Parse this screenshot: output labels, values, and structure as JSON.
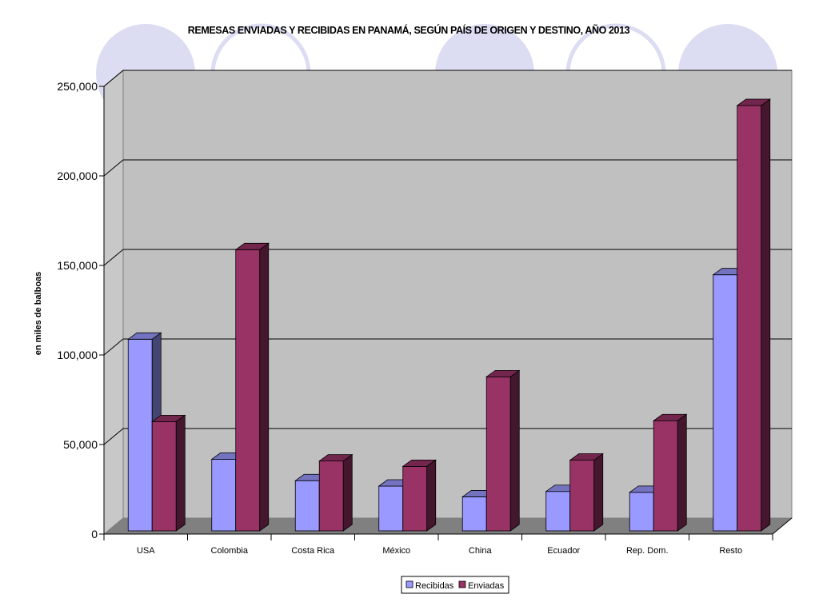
{
  "chart_data": {
    "type": "bar",
    "title": "REMESAS ENVIADAS Y RECIBIDAS EN PANAMÁ, SEGÚN PAÍS DE ORIGEN Y DESTINO, AÑO 2013",
    "xlabel": "",
    "ylabel": "en miles de balboas",
    "ylim": [
      0,
      250000
    ],
    "yticks": [
      "0",
      "50,000",
      "100,000",
      "150,000",
      "200,000",
      "250,000"
    ],
    "grid": true,
    "legend_position": "bottom",
    "categories": [
      "USA",
      "Colombia",
      "Costa Rica",
      "México",
      "China",
      "Ecuador",
      "Rep. Dom.",
      "Resto"
    ],
    "series": [
      {
        "name": "Recibidas",
        "values": [
          107000,
          40000,
          28000,
          25000,
          19000,
          22000,
          21500,
          143000
        ],
        "color": "#9999ff"
      },
      {
        "name": "Enviadas",
        "values": [
          61000,
          157000,
          39000,
          36000,
          86000,
          39500,
          61500,
          237500
        ],
        "color": "#993366"
      }
    ]
  },
  "colors": {
    "plot_wall": "#c0c0c0",
    "plot_floor": "#808080",
    "decor_circles": "#dcdcf2"
  }
}
